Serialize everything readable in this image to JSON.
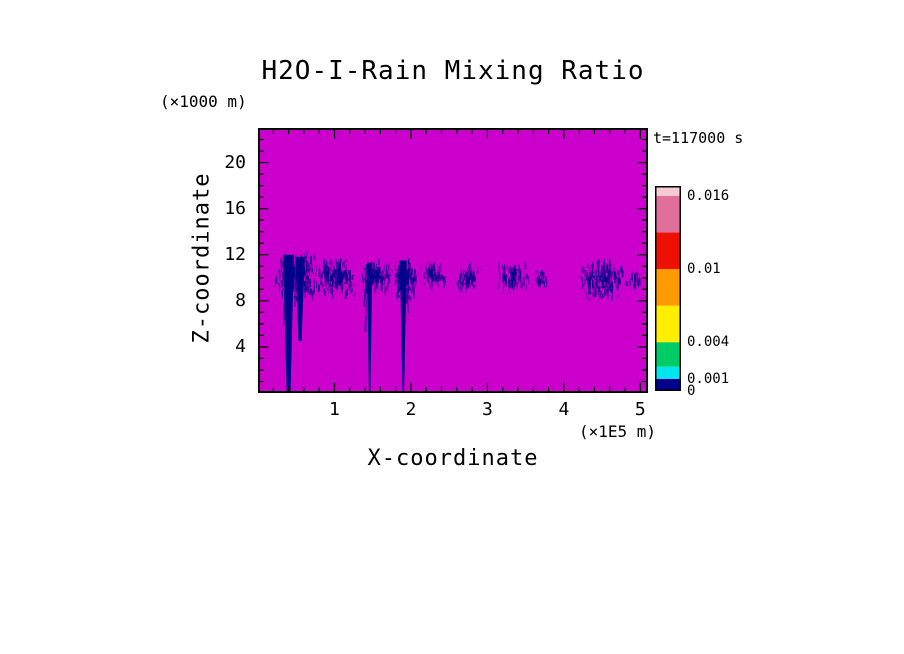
{
  "chart_data": {
    "type": "heatmap",
    "title": "H2O-I-Rain Mixing Ratio",
    "time_annotation": "t=117000 s",
    "xlabel": "X-coordinate",
    "x_unit_label": "(×1E5 m)",
    "ylabel": "Z-coordinate",
    "y_unit_label": "(×1000 m)",
    "xlim": [
      0,
      5.1
    ],
    "ylim": [
      0,
      23
    ],
    "x_ticks": [
      1,
      2,
      3,
      4,
      5
    ],
    "y_ticks": [
      4,
      8,
      12,
      16,
      20
    ],
    "x_minor_step": 0.2,
    "y_minor_step": 1,
    "grid": false,
    "legend_position": "right",
    "background_color": "#CC00CC",
    "rain_color": "#00008B",
    "frame_color": "#000000",
    "colorbar": {
      "position": "right",
      "max": 0.0168,
      "labels": [
        {
          "text": "0.016",
          "value": 0.016
        },
        {
          "text": "0.01",
          "value": 0.01
        },
        {
          "text": "0.004",
          "value": 0.004
        },
        {
          "text": "0.001",
          "value": 0.001
        },
        {
          "text": "0",
          "value": 0
        }
      ],
      "segments": [
        {
          "from": 0,
          "to": 0.001,
          "color": "#00008B"
        },
        {
          "from": 0.001,
          "to": 0.002,
          "color": "#00E5EE"
        },
        {
          "from": 0.002,
          "to": 0.004,
          "color": "#00CC66"
        },
        {
          "from": 0.004,
          "to": 0.007,
          "color": "#FFEE00"
        },
        {
          "from": 0.007,
          "to": 0.01,
          "color": "#FF9900"
        },
        {
          "from": 0.01,
          "to": 0.013,
          "color": "#EE1000"
        },
        {
          "from": 0.013,
          "to": 0.016,
          "color": "#E0709B"
        },
        {
          "from": 0.016,
          "to": 0.0168,
          "color": "#F6C9D3"
        }
      ]
    },
    "features": [
      {
        "kind": "patch",
        "x0": 0.22,
        "x1": 0.78,
        "z0": 7.9,
        "z1": 12.2,
        "strokes": 260
      },
      {
        "kind": "shaft",
        "x": 0.4,
        "z0": 0,
        "z1": 12.0,
        "w_top": 0.14,
        "w_bot": 0.05
      },
      {
        "kind": "shaft",
        "x": 0.55,
        "z0": 4.5,
        "z1": 11.8,
        "w_top": 0.12,
        "w_bot": 0.04
      },
      {
        "kind": "patch",
        "x0": 0.78,
        "x1": 1.28,
        "z0": 8.4,
        "z1": 11.7,
        "strokes": 210
      },
      {
        "kind": "shaft",
        "x": 1.46,
        "z0": 0,
        "z1": 11.3,
        "w_top": 0.07,
        "w_bot": 0.02
      },
      {
        "kind": "patch",
        "x0": 1.28,
        "x1": 1.76,
        "z0": 8.8,
        "z1": 11.5,
        "strokes": 130
      },
      {
        "kind": "shaft",
        "x": 1.9,
        "z0": 0,
        "z1": 11.5,
        "w_top": 0.09,
        "w_bot": 0.02
      },
      {
        "kind": "patch",
        "x0": 1.78,
        "x1": 2.08,
        "z0": 8.0,
        "z1": 11.6,
        "strokes": 170
      },
      {
        "kind": "patch",
        "x0": 2.12,
        "x1": 2.46,
        "z0": 8.9,
        "z1": 11.4,
        "strokes": 75
      },
      {
        "kind": "patch",
        "x0": 2.58,
        "x1": 2.93,
        "z0": 8.7,
        "z1": 11.2,
        "strokes": 80
      },
      {
        "kind": "patch",
        "x0": 3.1,
        "x1": 3.58,
        "z0": 8.7,
        "z1": 11.3,
        "strokes": 100
      },
      {
        "kind": "patch",
        "x0": 3.62,
        "x1": 3.8,
        "z0": 9.2,
        "z1": 10.6,
        "strokes": 28
      },
      {
        "kind": "patch",
        "x0": 4.18,
        "x1": 4.84,
        "z0": 8.1,
        "z1": 11.6,
        "strokes": 210
      },
      {
        "kind": "patch",
        "x0": 4.84,
        "x1": 5.02,
        "z0": 9.0,
        "z1": 10.5,
        "strokes": 32
      }
    ]
  }
}
